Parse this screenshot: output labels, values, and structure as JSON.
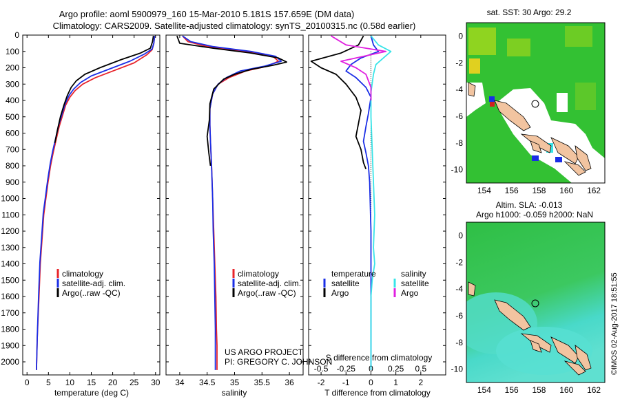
{
  "header": {
    "line1": "Argo profile: aoml 5900979_160 15-Mar-2010 5.181S 157.659E (DM data)",
    "line2": "Climatology: CARS2009. Satellite-adjusted climatology: synTS_20100315.nc (0.58d earlier)"
  },
  "credits": {
    "project": "US ARGO PROJECT",
    "pi": "PI: GREGORY C. JOHNSON",
    "stamp": "©IMOS 02-Aug-2017 18:51:55"
  },
  "colors": {
    "climatology": "#e8232a",
    "satellite": "#1a2ee6",
    "argo": "#000000",
    "satellite_s": "#38e4e8",
    "argo_s": "#e020e0",
    "land": "#f2c4a0",
    "sst_green": "#33c133",
    "sla_green": "#2fbf45",
    "sla_cyan": "#49d9c9"
  },
  "chart_data": [
    {
      "id": "temperature",
      "type": "line",
      "xlabel": "temperature (deg C)",
      "ylabel": "",
      "xlim": [
        -1,
        31
      ],
      "ylim": [
        2080,
        0
      ],
      "xticks": [
        0,
        5,
        10,
        15,
        20,
        25,
        30
      ],
      "yticks": [
        0,
        100,
        200,
        300,
        400,
        500,
        600,
        700,
        800,
        900,
        1000,
        1100,
        1200,
        1300,
        1400,
        1500,
        1600,
        1700,
        1800,
        1900,
        2000
      ],
      "legend": [
        "climatology",
        "satellite-adj. clim.",
        "Argo(..raw -QC)"
      ],
      "legend_position": "lower-left",
      "series": [
        {
          "name": "climatology",
          "color_key": "climatology",
          "x": [
            29.8,
            29.6,
            29.2,
            28.0,
            25.0,
            20.0,
            16.0,
            13.0,
            11.2,
            10.0,
            9.0,
            8.2,
            7.5,
            6.8,
            6.1,
            5.5,
            4.9,
            4.4,
            3.9,
            3.5,
            3.1,
            2.8,
            2.4,
            2.2
          ],
          "y": [
            5,
            50,
            90,
            120,
            170,
            220,
            260,
            300,
            340,
            380,
            430,
            500,
            560,
            640,
            720,
            800,
            900,
            1000,
            1100,
            1250,
            1400,
            1600,
            1850,
            2050
          ]
        },
        {
          "name": "satellite-adj. clim.",
          "color_key": "satellite",
          "x": [
            29.8,
            29.6,
            29.2,
            27.5,
            24.0,
            19.0,
            15.0,
            12.5,
            10.9,
            9.8,
            8.9,
            8.1,
            7.4,
            6.7,
            6.0,
            5.4,
            4.8,
            4.3,
            3.8,
            3.4,
            3.0,
            2.7,
            2.4,
            2.2
          ],
          "y": [
            5,
            50,
            85,
            115,
            160,
            210,
            250,
            290,
            330,
            370,
            420,
            490,
            550,
            630,
            710,
            790,
            890,
            990,
            1090,
            1240,
            1390,
            1600,
            1850,
            2050
          ]
        },
        {
          "name": "Argo(..raw -QC)",
          "color_key": "argo",
          "x": [
            29.5,
            29.3,
            28.8,
            26.5,
            22.0,
            17.0,
            13.5,
            11.5,
            10.3,
            9.4,
            8.6,
            7.8,
            7.1,
            6.5
          ],
          "y": [
            5,
            40,
            80,
            110,
            150,
            200,
            240,
            280,
            320,
            370,
            430,
            500,
            580,
            660
          ]
        }
      ]
    },
    {
      "id": "salinity",
      "type": "line",
      "xlabel": "salinity",
      "ylabel": "",
      "xlim": [
        33.75,
        36.25
      ],
      "ylim": [
        2080,
        0
      ],
      "xticks": [
        34,
        34.5,
        35,
        35.5,
        36
      ],
      "legend": [
        "climatology",
        "satellite-adj. clim.",
        "Argo(..raw -QC)"
      ],
      "legend_position": "lower-right",
      "series": [
        {
          "name": "climatology",
          "color_key": "climatology",
          "x": [
            34.05,
            34.15,
            34.5,
            35.2,
            35.7,
            35.8,
            35.6,
            35.2,
            34.9,
            34.7,
            34.6,
            34.55,
            34.55,
            34.56,
            34.58,
            34.6,
            34.62,
            34.64,
            34.66,
            34.67,
            34.68,
            34.68
          ],
          "y": [
            5,
            40,
            70,
            100,
            130,
            160,
            190,
            220,
            260,
            300,
            360,
            450,
            550,
            650,
            800,
            1000,
            1200,
            1400,
            1600,
            1800,
            1900,
            2050
          ]
        },
        {
          "name": "satellite-adj. clim.",
          "color_key": "satellite",
          "x": [
            34.05,
            34.2,
            34.6,
            35.3,
            35.75,
            35.85,
            35.55,
            35.1,
            34.85,
            34.7,
            34.6,
            34.55,
            34.55,
            34.56,
            34.58,
            34.6,
            34.61,
            34.63,
            34.64,
            34.65,
            34.65,
            34.65
          ],
          "y": [
            5,
            40,
            70,
            100,
            130,
            160,
            190,
            220,
            260,
            300,
            360,
            450,
            550,
            650,
            800,
            1000,
            1200,
            1400,
            1600,
            1800,
            1900,
            2050
          ]
        },
        {
          "name": "Argo(..raw -QC)",
          "color_key": "argo",
          "x": [
            33.95,
            34.0,
            34.6,
            35.3,
            35.8,
            35.95,
            35.7,
            35.3,
            35.0,
            34.8,
            34.62,
            34.55,
            34.54,
            34.5,
            34.53,
            34.56
          ],
          "y": [
            5,
            50,
            80,
            110,
            140,
            165,
            185,
            210,
            240,
            270,
            330,
            420,
            520,
            620,
            720,
            800
          ]
        }
      ]
    },
    {
      "id": "difference",
      "type": "line",
      "xlabel": "T difference from climatology",
      "x2label": "S difference from climatology",
      "ylabel": "",
      "xlim": [
        -2.5,
        3.0
      ],
      "ylim": [
        2080,
        0
      ],
      "xticks": [
        -2,
        -1,
        0,
        1,
        2
      ],
      "xticks_top_labels": [
        "-0.5",
        "-0.25",
        "0",
        "0.25",
        "0.5"
      ],
      "legend": [
        "temperature",
        "satellite",
        "Argo",
        "salinity",
        "satellite",
        "Argo"
      ],
      "legend_position": "lower-center",
      "series": [
        {
          "name": "satellite",
          "color_key": "satellite",
          "x": [
            0,
            0.1,
            0.3,
            -0.4,
            -0.8,
            -1.0,
            -0.6,
            -0.2,
            0.0,
            -0.1,
            -0.2,
            -0.3,
            -0.2,
            -0.1,
            -0.05,
            0.0,
            0.0,
            0.0
          ],
          "y": [
            5,
            60,
            100,
            140,
            180,
            220,
            260,
            320,
            380,
            480,
            560,
            650,
            720,
            800,
            900,
            1200,
            1600,
            2050
          ]
        },
        {
          "name": "Argo",
          "color_key": "argo",
          "x": [
            -0.3,
            -0.5,
            -1.2,
            -2.4,
            -2.0,
            -1.4,
            -1.0,
            -0.6,
            -0.4,
            -0.5,
            -0.6,
            -0.4,
            -0.3,
            -0.2
          ],
          "y": [
            5,
            60,
            110,
            160,
            200,
            240,
            300,
            380,
            460,
            540,
            620,
            700,
            780,
            820
          ]
        },
        {
          "name": "satellite",
          "color_key": "satellite_s",
          "x": [
            0.0,
            0.3,
            0.8,
            0.5,
            0.2,
            0.1,
            0.0,
            0.0,
            0.05,
            0.1,
            0.15,
            0.1,
            0.15,
            0.05,
            0.0,
            0.0,
            0.0
          ],
          "y": [
            5,
            60,
            100,
            140,
            180,
            240,
            350,
            500,
            700,
            900,
            1100,
            1300,
            1400,
            1500,
            1600,
            1800,
            2050
          ]
        },
        {
          "name": "Argo",
          "color_key": "argo_s",
          "x": [
            -1.6,
            -1.0,
            0.6,
            -1.2,
            -0.6,
            -0.2,
            0.0,
            0.0
          ],
          "y": [
            5,
            60,
            100,
            160,
            200,
            240,
            320,
            400
          ]
        }
      ]
    },
    {
      "id": "sst-map",
      "type": "heatmap",
      "title": "sat. SST: 30 Argo: 29.2",
      "xlim": [
        152.7,
        162.8
      ],
      "ylim": [
        -11,
        1
      ],
      "xticks": [
        154,
        156,
        158,
        160,
        162
      ],
      "yticks": [
        0,
        -2,
        -4,
        -6,
        -8,
        -10
      ],
      "marker": {
        "lon": 157.659,
        "lat": -5.181
      }
    },
    {
      "id": "sla-map",
      "type": "heatmap",
      "title": "Altim. SLA: -0.013",
      "subtitle": "Argo h1000: -0.059 h2000: NaN",
      "xlim": [
        152.7,
        162.8
      ],
      "ylim": [
        -11,
        1
      ],
      "xticks": [
        154,
        156,
        158,
        160,
        162
      ],
      "yticks": [
        0,
        -2,
        -4,
        -6,
        -8,
        -10
      ],
      "marker": {
        "lon": 157.659,
        "lat": -5.181
      }
    }
  ]
}
